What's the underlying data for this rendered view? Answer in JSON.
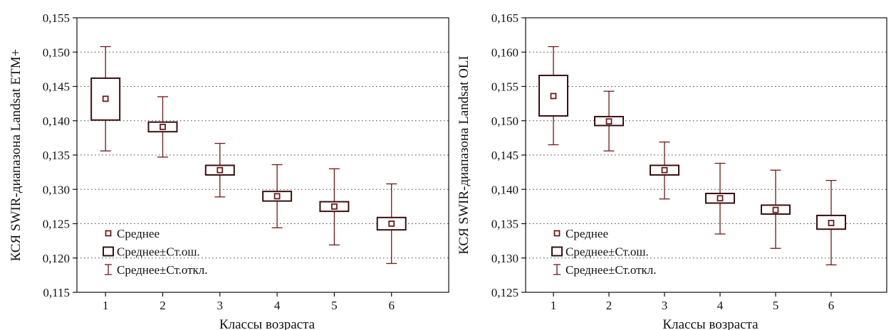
{
  "chart_data": [
    {
      "type": "box",
      "xlabel": "Классы возраста",
      "ylabel": "КСЯ SWIR-диапазона Landsat ETM+",
      "ylim": [
        0.115,
        0.155
      ],
      "yticks": [
        0.115,
        0.12,
        0.125,
        0.13,
        0.135,
        0.14,
        0.145,
        0.15,
        0.155
      ],
      "ytick_labels": [
        "0,115",
        "0,120",
        "0,125",
        "0,130",
        "0,135",
        "0,140",
        "0,145",
        "0,150",
        "0,155"
      ],
      "categories": [
        "1",
        "2",
        "3",
        "4",
        "5",
        "6"
      ],
      "grid": "horizontal dotted",
      "legend_position": "bottom-left",
      "legend": [
        "Среднее",
        "Среднее±Ст.ош.",
        "Среднее±Ст.откл."
      ],
      "mean": [
        0.1432,
        0.1391,
        0.1328,
        0.129,
        0.1275,
        0.125
      ],
      "se_low": [
        0.1401,
        0.1384,
        0.1321,
        0.1283,
        0.1268,
        0.1241
      ],
      "se_high": [
        0.1462,
        0.1398,
        0.1335,
        0.1297,
        0.1282,
        0.1259
      ],
      "sd_low": [
        0.1356,
        0.1347,
        0.1289,
        0.1244,
        0.1219,
        0.1192
      ],
      "sd_high": [
        0.1508,
        0.1435,
        0.1367,
        0.1336,
        0.133,
        0.1308
      ]
    },
    {
      "type": "box",
      "xlabel": "Классы возраста",
      "ylabel": "КСЯ SWIR-диапазона Landsat OLI",
      "ylim": [
        0.125,
        0.165
      ],
      "yticks": [
        0.125,
        0.13,
        0.135,
        0.14,
        0.145,
        0.15,
        0.155,
        0.16,
        0.165
      ],
      "ytick_labels": [
        "0,125",
        "0,130",
        "0,135",
        "0,140",
        "0,145",
        "0,150",
        "0,155",
        "0,160",
        "0,165"
      ],
      "categories": [
        "1",
        "2",
        "3",
        "4",
        "5",
        "6"
      ],
      "grid": "horizontal dotted",
      "legend_position": "bottom-left",
      "legend": [
        "Среднее",
        "Среднее±Ст.ош.",
        "Среднее±Ст.откл."
      ],
      "mean": [
        0.1536,
        0.1499,
        0.1428,
        0.1387,
        0.137,
        0.1351
      ],
      "se_low": [
        0.1507,
        0.1493,
        0.1421,
        0.138,
        0.1364,
        0.1342
      ],
      "se_high": [
        0.1566,
        0.1506,
        0.1435,
        0.1394,
        0.1377,
        0.1362
      ],
      "sd_low": [
        0.1465,
        0.1456,
        0.1386,
        0.1335,
        0.1314,
        0.129
      ],
      "sd_high": [
        0.1608,
        0.1543,
        0.1469,
        0.1438,
        0.1428,
        0.1413
      ]
    }
  ],
  "style": {
    "mark_color": "#6e1a1a",
    "box_fill": "#ffffff",
    "grid_color": "#444444"
  }
}
